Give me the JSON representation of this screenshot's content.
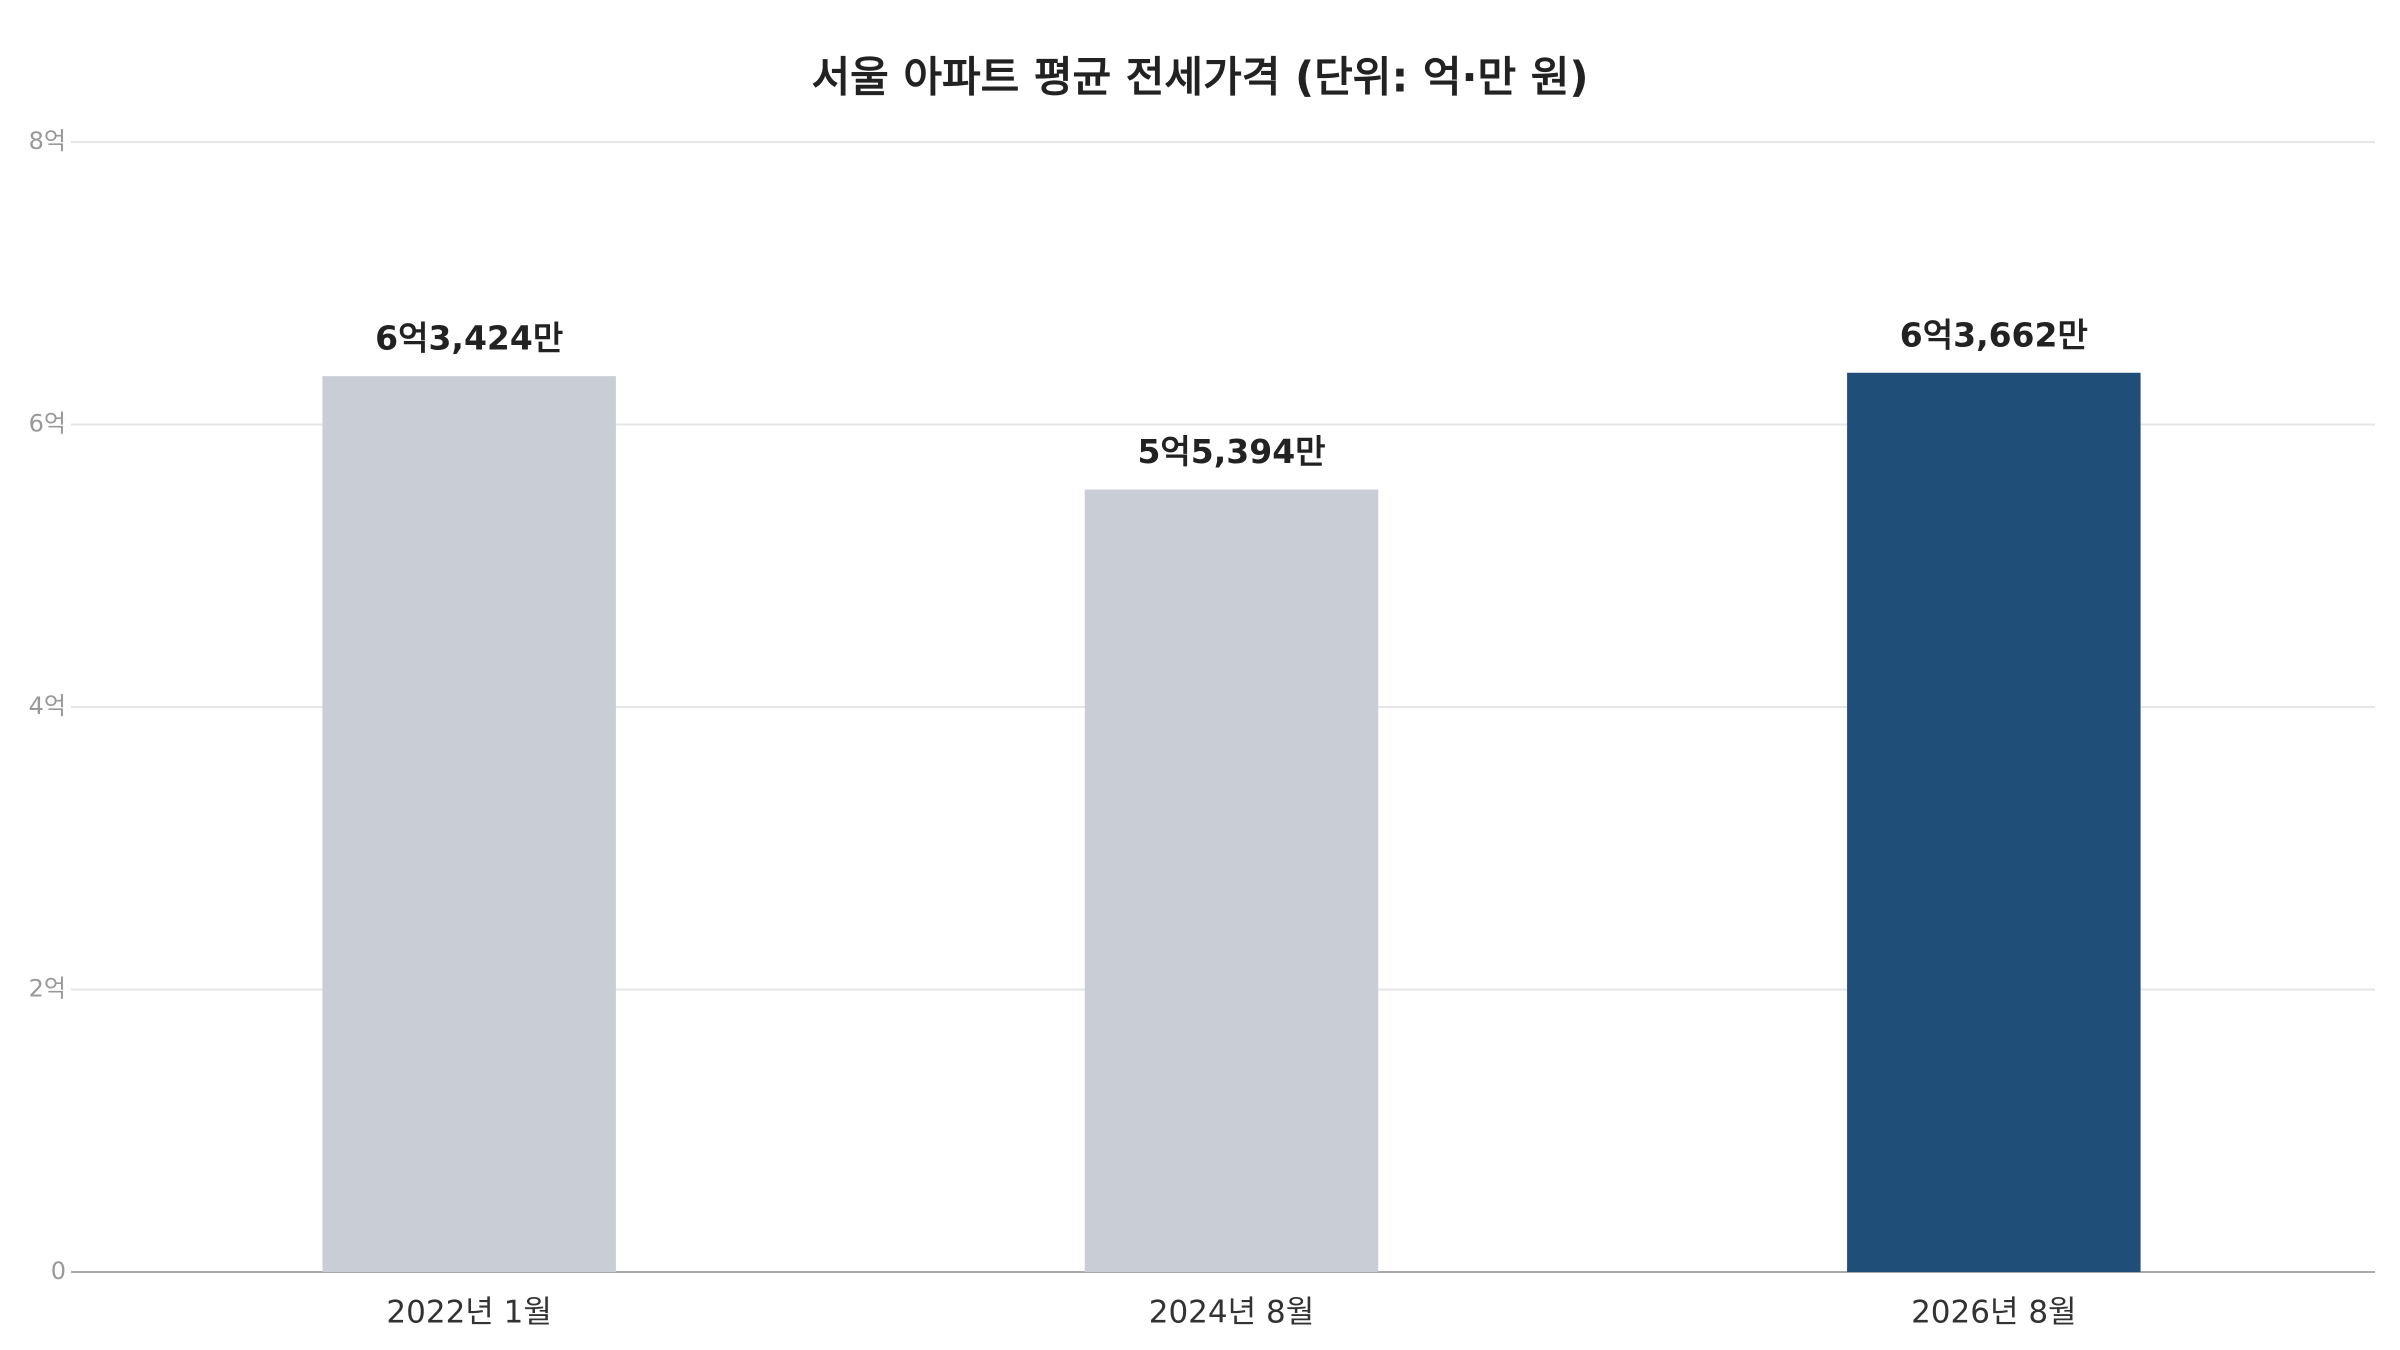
{
  "chart_data": {
    "type": "bar",
    "title": "서울 아파트 평균 전세가격 (단위: 억·만 원)",
    "categories": [
      "2022년 1월",
      "2024년 8월",
      "2026년 8월"
    ],
    "values": [
      6.3424,
      5.5394,
      6.3662
    ],
    "value_labels": [
      "6억3,424만",
      "5억5,394만",
      "6억3,662만"
    ],
    "colors": [
      "#c9ced6",
      "#c9ced6",
      "#1f4e79"
    ],
    "ylim": [
      0,
      8
    ],
    "yticks": [
      0,
      {
        "value": 2,
        "label": "2억"
      },
      {
        "value": 4,
        "label": "4억"
      },
      {
        "value": 6,
        "label": "6억"
      },
      {
        "value": 8,
        "label": "8억"
      }
    ],
    "grid": true
  }
}
